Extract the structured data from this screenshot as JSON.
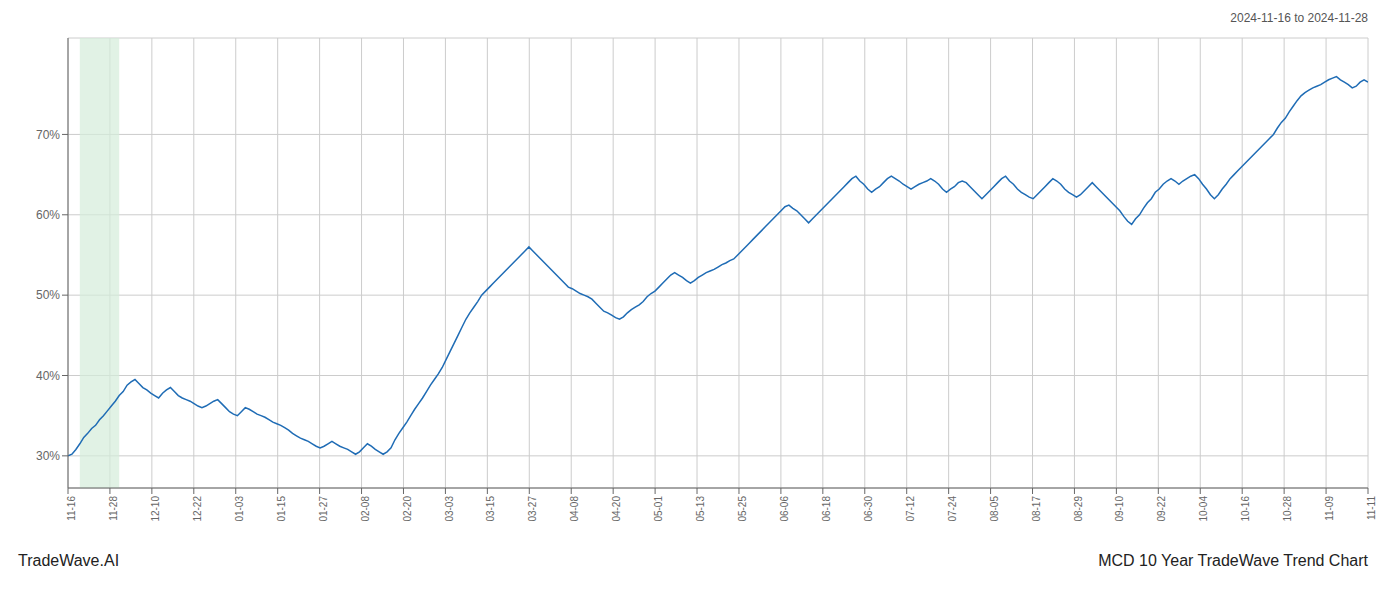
{
  "chart_data": {
    "type": "line",
    "title": "MCD 10 Year TradeWave Trend Chart",
    "subtitle": "2024-11-16 to 2024-11-28",
    "annotation": "TradeWave.AI",
    "color": "#1f6cb5",
    "grid": true,
    "highlight": {
      "x": [
        3,
        13
      ],
      "color": "#d4edda"
    },
    "ylim": [
      26,
      82
    ],
    "yticks": [
      {
        "value": 30,
        "label": "30%"
      },
      {
        "value": 40,
        "label": "40%"
      },
      {
        "value": 50,
        "label": "50%"
      },
      {
        "value": 60,
        "label": "60%"
      },
      {
        "value": 70,
        "label": "70%"
      }
    ],
    "xlim": [
      0,
      330
    ],
    "xticks": [
      {
        "value": 0,
        "label": "11-16"
      },
      {
        "value": 10.645,
        "label": "11-28"
      },
      {
        "value": 21.29,
        "label": "12-10"
      },
      {
        "value": 31.935,
        "label": "12-22"
      },
      {
        "value": 42.581,
        "label": "01-03"
      },
      {
        "value": 53.226,
        "label": "01-15"
      },
      {
        "value": 63.871,
        "label": "01-27"
      },
      {
        "value": 74.516,
        "label": "02-08"
      },
      {
        "value": 85.161,
        "label": "02-20"
      },
      {
        "value": 95.806,
        "label": "03-03"
      },
      {
        "value": 106.452,
        "label": "03-15"
      },
      {
        "value": 117.097,
        "label": "03-27"
      },
      {
        "value": 127.742,
        "label": "04-08"
      },
      {
        "value": 138.387,
        "label": "04-20"
      },
      {
        "value": 149.032,
        "label": "05-01"
      },
      {
        "value": 159.677,
        "label": "05-13"
      },
      {
        "value": 170.323,
        "label": "05-25"
      },
      {
        "value": 180.968,
        "label": "06-06"
      },
      {
        "value": 191.613,
        "label": "06-18"
      },
      {
        "value": 202.258,
        "label": "06-30"
      },
      {
        "value": 212.903,
        "label": "07-12"
      },
      {
        "value": 223.548,
        "label": "07-24"
      },
      {
        "value": 234.194,
        "label": "08-05"
      },
      {
        "value": 244.839,
        "label": "08-17"
      },
      {
        "value": 255.484,
        "label": "08-29"
      },
      {
        "value": 266.129,
        "label": "09-10"
      },
      {
        "value": 276.774,
        "label": "09-22"
      },
      {
        "value": 287.419,
        "label": "10-04"
      },
      {
        "value": 298.065,
        "label": "10-16"
      },
      {
        "value": 308.71,
        "label": "10-28"
      },
      {
        "value": 319.355,
        "label": "11-09"
      },
      {
        "value": 330,
        "label": "11-11"
      }
    ],
    "x": [
      0,
      1,
      2,
      3,
      4,
      5,
      6,
      7,
      8,
      9,
      10,
      11,
      12,
      13,
      14,
      15,
      16,
      17,
      18,
      19,
      20,
      21,
      22,
      23,
      24,
      25,
      26,
      27,
      28,
      29,
      30,
      31,
      32,
      33,
      34,
      35,
      36,
      37,
      38,
      39,
      40,
      41,
      42,
      43,
      44,
      45,
      46,
      47,
      48,
      49,
      50,
      51,
      52,
      53,
      54,
      55,
      56,
      57,
      58,
      59,
      60,
      61,
      62,
      63,
      64,
      65,
      66,
      67,
      68,
      69,
      70,
      71,
      72,
      73,
      74,
      75,
      76,
      77,
      78,
      79,
      80,
      81,
      82,
      83,
      84,
      85,
      86,
      87,
      88,
      89,
      90,
      91,
      92,
      93,
      94,
      95,
      96,
      97,
      98,
      99,
      100,
      101,
      102,
      103,
      104,
      105,
      106,
      107,
      108,
      109,
      110,
      111,
      112,
      113,
      114,
      115,
      116,
      117,
      118,
      119,
      120,
      121,
      122,
      123,
      124,
      125,
      126,
      127,
      128,
      129,
      130,
      131,
      132,
      133,
      134,
      135,
      136,
      137,
      138,
      139,
      140,
      141,
      142,
      143,
      144,
      145,
      146,
      147,
      148,
      149,
      150,
      151,
      152,
      153,
      154,
      155,
      156,
      157,
      158,
      159,
      160,
      161,
      162,
      163,
      164,
      165,
      166,
      167,
      168,
      169,
      170,
      171,
      172,
      173,
      174,
      175,
      176,
      177,
      178,
      179,
      180,
      181,
      182,
      183,
      184,
      185,
      186,
      187,
      188,
      189,
      190,
      191,
      192,
      193,
      194,
      195,
      196,
      197,
      198,
      199,
      200,
      201,
      202,
      203,
      204,
      205,
      206,
      207,
      208,
      209,
      210,
      211,
      212,
      213,
      214,
      215,
      216,
      217,
      218,
      219,
      220,
      221,
      222,
      223,
      224,
      225,
      226,
      227,
      228,
      229,
      230,
      231,
      232,
      233,
      234,
      235,
      236,
      237,
      238,
      239,
      240,
      241,
      242,
      243,
      244,
      245,
      246,
      247,
      248,
      249,
      250,
      251,
      252,
      253,
      254,
      255,
      256,
      257,
      258,
      259,
      260,
      261,
      262,
      263,
      264,
      265,
      266,
      267,
      268,
      269,
      270,
      271,
      272,
      273,
      274,
      275,
      276,
      277,
      278,
      279,
      280,
      281,
      282,
      283,
      284,
      285,
      286,
      287,
      288,
      289,
      290,
      291,
      292,
      293,
      294,
      295,
      296,
      297,
      298,
      299,
      300,
      301,
      302,
      303,
      304,
      305,
      306,
      307,
      308,
      309,
      310,
      311,
      312,
      313,
      314,
      315,
      316,
      317,
      318,
      319,
      320,
      321,
      322,
      323,
      324,
      325,
      326,
      327,
      328,
      329,
      330
    ],
    "values": [
      30.0,
      30.2,
      30.8,
      31.5,
      32.3,
      32.8,
      33.4,
      33.8,
      34.5,
      35.0,
      35.6,
      36.2,
      36.8,
      37.5,
      38.0,
      38.8,
      39.2,
      39.5,
      39.0,
      38.5,
      38.2,
      37.8,
      37.5,
      37.2,
      37.8,
      38.2,
      38.5,
      38.0,
      37.5,
      37.2,
      37.0,
      36.8,
      36.5,
      36.2,
      36.0,
      36.2,
      36.5,
      36.8,
      37.0,
      36.5,
      36.0,
      35.5,
      35.2,
      35.0,
      35.5,
      36.0,
      35.8,
      35.5,
      35.2,
      35.0,
      34.8,
      34.5,
      34.2,
      34.0,
      33.8,
      33.5,
      33.2,
      32.8,
      32.5,
      32.2,
      32.0,
      31.8,
      31.5,
      31.2,
      31.0,
      31.2,
      31.5,
      31.8,
      31.5,
      31.2,
      31.0,
      30.8,
      30.5,
      30.2,
      30.5,
      31.0,
      31.5,
      31.2,
      30.8,
      30.5,
      30.2,
      30.5,
      31.0,
      32.0,
      32.8,
      33.5,
      34.2,
      35.0,
      35.8,
      36.5,
      37.2,
      38.0,
      38.8,
      39.5,
      40.2,
      41.0,
      42.0,
      43.0,
      44.0,
      45.0,
      46.0,
      47.0,
      47.8,
      48.5,
      49.2,
      50.0,
      50.5,
      51.0,
      51.5,
      52.0,
      52.5,
      53.0,
      53.5,
      54.0,
      54.5,
      55.0,
      55.5,
      56.0,
      55.5,
      55.0,
      54.5,
      54.0,
      53.5,
      53.0,
      52.5,
      52.0,
      51.5,
      51.0,
      50.8,
      50.5,
      50.2,
      50.0,
      49.8,
      49.5,
      49.0,
      48.5,
      48.0,
      47.8,
      47.5,
      47.2,
      47.0,
      47.3,
      47.8,
      48.2,
      48.5,
      48.8,
      49.2,
      49.8,
      50.2,
      50.5,
      51.0,
      51.5,
      52.0,
      52.5,
      52.8,
      52.5,
      52.2,
      51.8,
      51.5,
      51.8,
      52.2,
      52.5,
      52.8,
      53.0,
      53.2,
      53.5,
      53.8,
      54.0,
      54.3,
      54.5,
      55.0,
      55.5,
      56.0,
      56.5,
      57.0,
      57.5,
      58.0,
      58.5,
      59.0,
      59.5,
      60.0,
      60.5,
      61.0,
      61.2,
      60.8,
      60.5,
      60.0,
      59.5,
      59.0,
      59.5,
      60.0,
      60.5,
      61.0,
      61.5,
      62.0,
      62.5,
      63.0,
      63.5,
      64.0,
      64.5,
      64.8,
      64.2,
      63.8,
      63.2,
      62.8,
      63.2,
      63.5,
      64.0,
      64.5,
      64.8,
      64.5,
      64.2,
      63.8,
      63.5,
      63.2,
      63.5,
      63.8,
      64.0,
      64.2,
      64.5,
      64.2,
      63.8,
      63.2,
      62.8,
      63.2,
      63.5,
      64.0,
      64.2,
      64.0,
      63.5,
      63.0,
      62.5,
      62.0,
      62.5,
      63.0,
      63.5,
      64.0,
      64.5,
      64.8,
      64.2,
      63.8,
      63.2,
      62.8,
      62.5,
      62.2,
      62.0,
      62.5,
      63.0,
      63.5,
      64.0,
      64.5,
      64.2,
      63.8,
      63.2,
      62.8,
      62.5,
      62.2,
      62.5,
      63.0,
      63.5,
      64.0,
      63.5,
      63.0,
      62.5,
      62.0,
      61.5,
      61.0,
      60.5,
      59.8,
      59.2,
      58.8,
      59.5,
      60.0,
      60.8,
      61.5,
      62.0,
      62.8,
      63.2,
      63.8,
      64.2,
      64.5,
      64.2,
      63.8,
      64.2,
      64.5,
      64.8,
      65.0,
      64.5,
      63.8,
      63.2,
      62.5,
      62.0,
      62.5,
      63.2,
      63.8,
      64.5,
      65.0,
      65.5,
      66.0,
      66.5,
      67.0,
      67.5,
      68.0,
      68.5,
      69.0,
      69.5,
      70.0,
      70.8,
      71.5,
      72.0,
      72.8,
      73.5,
      74.2,
      74.8,
      75.2,
      75.5,
      75.8,
      76.0,
      76.2,
      76.5,
      76.8,
      77.0,
      77.2,
      76.8,
      76.5,
      76.2,
      75.8,
      76.0,
      76.5,
      76.8,
      76.5
    ]
  }
}
